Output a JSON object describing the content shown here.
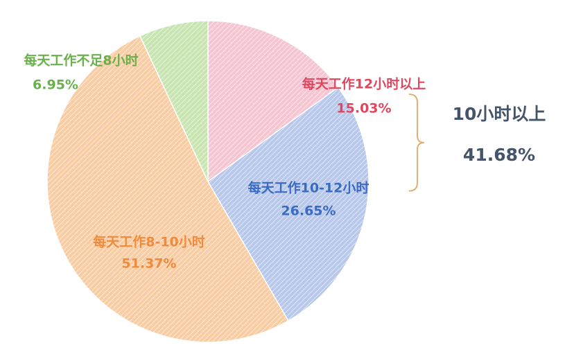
{
  "chart_data": {
    "type": "pie",
    "categories": [
      "每天工作12小时以上",
      "每天工作10-12小时",
      "每天工作8-10小时",
      "每天工作不足8小时"
    ],
    "values": [
      15.03,
      26.65,
      51.37,
      6.95
    ],
    "value_labels": [
      "15.03%",
      "26.65%",
      "51.37%",
      "6.95%"
    ],
    "colors": [
      "#f5c6d1",
      "#b8c8ea",
      "#f8cda4",
      "#c8e5b1"
    ],
    "label_colors": [
      "#e0475f",
      "#3a6bc4",
      "#f08a3c",
      "#6ab04c"
    ],
    "annotation": {
      "text": "10小时以上",
      "value": 41.68,
      "value_label": "41.68%"
    }
  }
}
